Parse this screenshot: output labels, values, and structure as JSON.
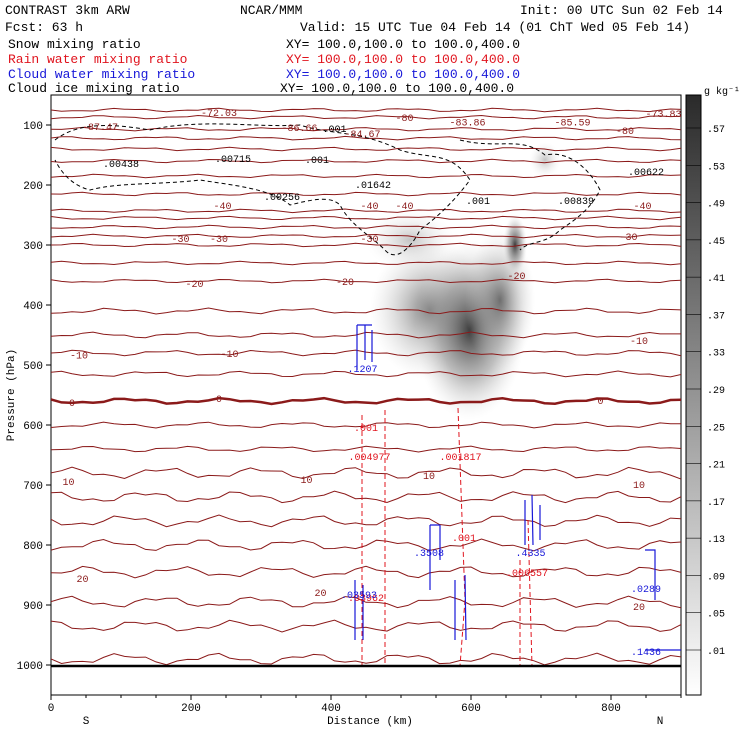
{
  "header": {
    "line1_left": "CONTRAST  3km ARW",
    "line1_mid": "NCAR/MMM",
    "line1_right": "Init: 00 UTC Sun 02 Feb 14",
    "line2_left": "Fcst:   63 h",
    "line2_right": "Valid: 15 UTC Tue 04 Feb 14 (01 ChT Wed 05 Feb 14)",
    "fields": [
      {
        "name": "Snow mixing ratio",
        "xy": "XY= 100.0,100.0 to 100.0,400.0",
        "color": "#000000"
      },
      {
        "name": "Rain water mixing ratio",
        "xy": "XY= 100.0,100.0 to 100.0,400.0",
        "color": "#e0141e"
      },
      {
        "name": "Cloud water mixing ratio",
        "xy": "XY= 100.0,100.0 to 100.0,400.0",
        "color": "#1818d8"
      },
      {
        "name": "Cloud ice mixing ratio",
        "xy": "XY= 100.0,100.0 to 100.0,400.0",
        "color": "#000000"
      }
    ]
  },
  "colorbar": {
    "unit": "g kg⁻¹",
    "ticks": [
      ".57",
      ".53",
      ".49",
      ".45",
      ".41",
      ".37",
      ".33",
      ".29",
      ".25",
      ".21",
      ".17",
      ".13",
      ".09",
      ".05",
      ".01"
    ]
  },
  "chart_data": {
    "type": "contour",
    "xlabel": "Distance (km)",
    "ylabel": "Pressure (hPa)",
    "xlim": [
      0,
      900
    ],
    "ylim": [
      1050,
      50
    ],
    "xticks": [
      0,
      200,
      400,
      600,
      800
    ],
    "yticks": [
      100,
      200,
      300,
      400,
      500,
      600,
      700,
      800,
      900,
      1000
    ],
    "x_end_labels": {
      "left": "S",
      "right": "N"
    },
    "temperature_contours": {
      "color": "#8b1a1a",
      "labels": [
        {
          "text": "-72.03",
          "x": 240,
          "p": 80
        },
        {
          "text": "-87.47",
          "x": 70,
          "p": 103
        },
        {
          "text": "-86.66",
          "x": 355,
          "p": 105
        },
        {
          "text": "-84.67",
          "x": 445,
          "p": 115
        },
        {
          "text": "-80",
          "x": 505,
          "p": 88
        },
        {
          "text": "-83.86",
          "x": 595,
          "p": 96
        },
        {
          "text": "-85.59",
          "x": 745,
          "p": 96
        },
        {
          "text": "-73.83",
          "x": 875,
          "p": 82
        },
        {
          "text": "-80",
          "x": 820,
          "p": 110
        },
        {
          "text": "-40",
          "x": 245,
          "p": 235
        },
        {
          "text": "-40",
          "x": 455,
          "p": 235
        },
        {
          "text": "-40",
          "x": 505,
          "p": 235
        },
        {
          "text": "-40",
          "x": 845,
          "p": 235
        },
        {
          "text": "-30",
          "x": 185,
          "p": 290
        },
        {
          "text": "-30",
          "x": 240,
          "p": 290
        },
        {
          "text": "-30",
          "x": 455,
          "p": 290
        },
        {
          "text": "-30",
          "x": 825,
          "p": 287
        },
        {
          "text": "-20",
          "x": 205,
          "p": 365
        },
        {
          "text": "-20",
          "x": 420,
          "p": 362
        },
        {
          "text": "-20",
          "x": 665,
          "p": 352
        },
        {
          "text": "-10",
          "x": 40,
          "p": 484
        },
        {
          "text": "-10",
          "x": 255,
          "p": 482
        },
        {
          "text": "-10",
          "x": 840,
          "p": 460
        },
        {
          "text": "0",
          "x": 30,
          "p": 563
        },
        {
          "text": "0",
          "x": 240,
          "p": 557
        },
        {
          "text": "0",
          "x": 785,
          "p": 560
        },
        {
          "text": "10",
          "x": 25,
          "p": 695
        },
        {
          "text": "10",
          "x": 365,
          "p": 692
        },
        {
          "text": "10",
          "x": 540,
          "p": 685
        },
        {
          "text": "10",
          "x": 840,
          "p": 700
        },
        {
          "text": "20",
          "x": 45,
          "p": 857
        },
        {
          "text": "20",
          "x": 385,
          "p": 880
        },
        {
          "text": "20",
          "x": 840,
          "p": 903
        }
      ],
      "lines_p": [
        75,
        87,
        107,
        122,
        140,
        160,
        185,
        215,
        243,
        255,
        270,
        285,
        300,
        330,
        360,
        410,
        450,
        480,
        515,
        560,
        600,
        640,
        680,
        720,
        760,
        800,
        845,
        895,
        935,
        990
      ]
    },
    "cloud_ice_labels": [
      {
        "text": ".00438",
        "x": 100,
        "p": 170
      },
      {
        "text": ".00715",
        "x": 260,
        "p": 162
      },
      {
        "text": ".001",
        "x": 380,
        "p": 163
      },
      {
        "text": ".001",
        "x": 405,
        "p": 112
      },
      {
        "text": ".00256",
        "x": 330,
        "p": 225
      },
      {
        "text": ".01642",
        "x": 460,
        "p": 205
      },
      {
        "text": ".001",
        "x": 610,
        "p": 232
      },
      {
        "text": ".00839",
        "x": 750,
        "p": 232
      },
      {
        "text": ".00622",
        "x": 850,
        "p": 183
      }
    ],
    "rain_labels": [
      {
        "text": ".001",
        "x": 450,
        "p": 610
      },
      {
        "text": ".004977",
        "x": 455,
        "p": 658
      },
      {
        "text": ".001817",
        "x": 585,
        "p": 658
      },
      {
        "text": ".001",
        "x": 590,
        "p": 793
      },
      {
        "text": ".006557",
        "x": 680,
        "p": 852
      },
      {
        "text": ".03962",
        "x": 450,
        "p": 893
      }
    ],
    "cloud_water_labels": [
      {
        "text": ".1207",
        "x": 445,
        "p": 512
      },
      {
        "text": ".3508",
        "x": 540,
        "p": 818
      },
      {
        "text": ".4335",
        "x": 685,
        "p": 818
      },
      {
        "text": ".03593",
        "x": 440,
        "p": 888
      },
      {
        "text": ".0289",
        "x": 850,
        "p": 878
      },
      {
        "text": ".1436",
        "x": 850,
        "p": 983
      }
    ]
  }
}
